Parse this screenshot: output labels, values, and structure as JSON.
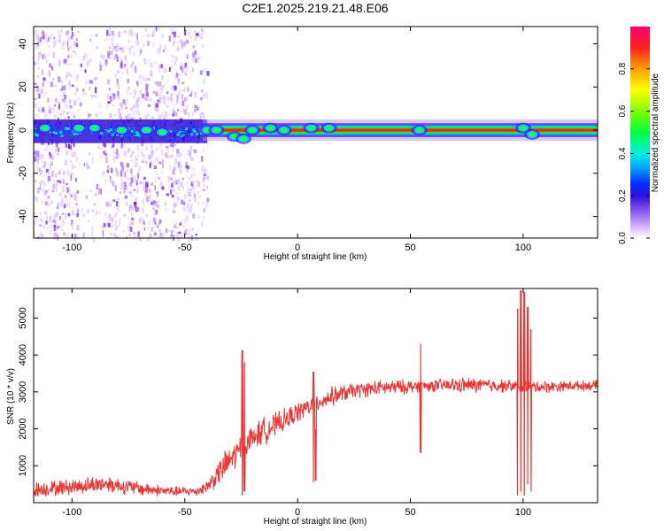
{
  "title": "C2E1.2025.219.21.48.E06",
  "colors": {
    "background": "#ffffff",
    "axis": "#000000",
    "snr_line": "#ee3333",
    "trace_core": "#ff2020",
    "trace_band": "#00ff00",
    "noise": "#7a20e0"
  },
  "chart_data": [
    {
      "type": "heatmap",
      "title": "",
      "xlabel": "Height of straight line (km)",
      "ylabel": "Frequency (Hz)",
      "xlim": [
        -117,
        133
      ],
      "ylim": [
        -50,
        48
      ],
      "xticks": [
        -100,
        -50,
        0,
        50,
        100
      ],
      "xtick_labels": [
        "-100",
        "-50",
        "0",
        "50",
        "100"
      ],
      "yticks": [
        -40,
        -20,
        0,
        20,
        40
      ],
      "ytick_labels": [
        "-40",
        "-20",
        "0",
        "20",
        "40"
      ],
      "grid": false,
      "colormap": [
        "#ffffff",
        "#e8d0ff",
        "#c090ff",
        "#8040e0",
        "#4010d0",
        "#0020ff",
        "#00a0ff",
        "#00f0d0",
        "#00ff00",
        "#a0ff00",
        "#ffff00",
        "#ffa000",
        "#ff3000",
        "#ff0050"
      ],
      "colorbar": {
        "label": "Normalized spectral amplitude",
        "range": [
          0,
          1
        ],
        "ticks": [
          0.0,
          0.2,
          0.4,
          0.6,
          0.8
        ],
        "tick_labels": [
          "0.0",
          "0.2",
          "0.4",
          "0.6",
          "0.8"
        ]
      },
      "features": {
        "noise_region_x": [
          -117,
          -40
        ],
        "noise_gap_x": [
          -98,
          -86
        ],
        "main_trace_frequency": 0,
        "bright_trace_x": [
          -42,
          133
        ],
        "blobs": [
          {
            "x": -112,
            "f": 1
          },
          {
            "x": -97,
            "f": 1
          },
          {
            "x": -90,
            "f": 1
          },
          {
            "x": -78,
            "f": 0
          },
          {
            "x": -67,
            "f": 0
          },
          {
            "x": -60,
            "f": -1
          },
          {
            "x": -40,
            "f": 0
          },
          {
            "x": -36,
            "f": 0
          },
          {
            "x": -28,
            "f": -3
          },
          {
            "x": -24,
            "f": -4
          },
          {
            "x": -20,
            "f": 0
          },
          {
            "x": -12,
            "f": 1
          },
          {
            "x": -6,
            "f": 0
          },
          {
            "x": 6,
            "f": 1
          },
          {
            "x": 14,
            "f": 1
          },
          {
            "x": 54,
            "f": 0
          },
          {
            "x": 100,
            "f": 1
          },
          {
            "x": 104,
            "f": -2
          }
        ]
      }
    },
    {
      "type": "line",
      "title": "",
      "xlabel": "Height of straight line (km)",
      "ylabel": "SNR (10 * v/v)",
      "xlim": [
        -117,
        133
      ],
      "ylim": [
        0,
        5800
      ],
      "xticks": [
        -100,
        -50,
        0,
        50,
        100
      ],
      "xtick_labels": [
        "-100",
        "-50",
        "0",
        "50",
        "100"
      ],
      "yticks": [
        1000,
        2000,
        3000,
        4000,
        5000
      ],
      "ytick_labels": [
        "1000",
        "2000",
        "3000",
        "4000",
        "5000"
      ],
      "grid": false,
      "series": [
        {
          "color": "#ee3333",
          "x": [
            -117,
            -100,
            -85,
            -70,
            -55,
            -45,
            -40,
            -35,
            -30,
            -25,
            -20,
            -15,
            -10,
            -5,
            0,
            5,
            10,
            15,
            20,
            25,
            30,
            35,
            40,
            45,
            50,
            55,
            60,
            70,
            80,
            90,
            95,
            100,
            105,
            110,
            120,
            133
          ],
          "y": [
            350,
            430,
            520,
            380,
            300,
            310,
            440,
            800,
            1150,
            1450,
            1750,
            1950,
            2100,
            2250,
            2450,
            2600,
            2750,
            2870,
            2960,
            3030,
            3070,
            3100,
            3120,
            3130,
            3140,
            3160,
            3170,
            3180,
            3180,
            3170,
            3160,
            3150,
            3140,
            3140,
            3160,
            3180
          ],
          "noise": [
            250,
            250,
            280,
            230,
            160,
            160,
            220,
            420,
            480,
            480,
            420,
            440,
            380,
            350,
            320,
            320,
            300,
            300,
            280,
            250,
            250,
            250,
            250,
            240,
            220,
            200,
            200,
            240,
            240,
            220,
            200,
            200,
            200,
            200,
            160,
            160
          ]
        }
      ],
      "spikes": [
        {
          "x": -24.5,
          "y_max": 4130,
          "y_min": 200
        },
        {
          "x": -23.5,
          "y_max": 3800,
          "y_min": 300
        },
        {
          "x": 7,
          "y_max": 3550,
          "y_min": 550
        },
        {
          "x": 8,
          "y_max": 2000,
          "y_min": 600
        },
        {
          "x": 54.5,
          "y_max": 4300,
          "y_min": 1350
        },
        {
          "x": 97.5,
          "y_max": 5250,
          "y_min": 200
        },
        {
          "x": 99,
          "y_max": 5750,
          "y_min": 300
        },
        {
          "x": 100.5,
          "y_max": 5700,
          "y_min": 200
        },
        {
          "x": 102,
          "y_max": 5300,
          "y_min": 500
        },
        {
          "x": 103.5,
          "y_max": 4700,
          "y_min": 300
        }
      ]
    }
  ]
}
